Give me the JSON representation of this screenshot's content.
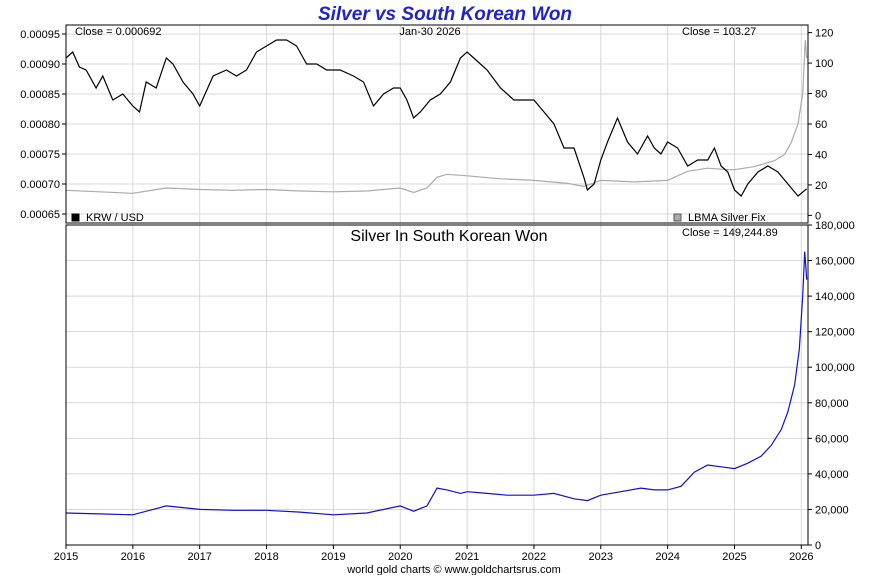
{
  "chart_data": [
    {
      "type": "line",
      "title": "Silver vs South Korean Won",
      "date_label": "Jan-30  2026",
      "left_close_label": "Close = 0.000692",
      "right_close_label": "Close = 103.27",
      "x_ticks": [
        "2015",
        "2016",
        "2017",
        "2018",
        "2019",
        "2020",
        "2021",
        "2022",
        "2023",
        "2024",
        "2025",
        "2026"
      ],
      "y_left_ticks": [
        "0.00095",
        "0.00090",
        "0.00085",
        "0.00080",
        "0.00075",
        "0.00070",
        "0.00065"
      ],
      "y_right_ticks": [
        "120",
        "100",
        "80",
        "60",
        "40",
        "20",
        "0"
      ],
      "ylim_left": [
        0.000635,
        0.000965
      ],
      "ylim_right": [
        -5,
        125
      ],
      "legend": [
        {
          "label": "KRW / USD",
          "color": "#000000",
          "placement": "bottom-left"
        },
        {
          "label": "LBMA Silver Fix",
          "color": "#aaaaaa",
          "placement": "bottom-right"
        }
      ],
      "series": [
        {
          "name": "KRW / USD",
          "axis": "left",
          "color": "#000000",
          "x": [
            2015.0,
            2015.1,
            2015.2,
            2015.3,
            2015.45,
            2015.55,
            2015.7,
            2015.85,
            2016.0,
            2016.1,
            2016.2,
            2016.35,
            2016.5,
            2016.6,
            2016.75,
            2016.9,
            2017.0,
            2017.2,
            2017.4,
            2017.55,
            2017.7,
            2017.85,
            2018.0,
            2018.15,
            2018.3,
            2018.45,
            2018.6,
            2018.75,
            2018.9,
            2019.1,
            2019.3,
            2019.45,
            2019.6,
            2019.75,
            2019.9,
            2020.0,
            2020.1,
            2020.2,
            2020.3,
            2020.45,
            2020.6,
            2020.75,
            2020.9,
            2021.0,
            2021.1,
            2021.3,
            2021.5,
            2021.7,
            2021.9,
            2022.0,
            2022.15,
            2022.3,
            2022.45,
            2022.6,
            2022.75,
            2022.8,
            2022.9,
            2023.0,
            2023.1,
            2023.25,
            2023.4,
            2023.55,
            2023.7,
            2023.8,
            2023.9,
            2024.0,
            2024.15,
            2024.3,
            2024.45,
            2024.6,
            2024.7,
            2024.8,
            2024.9,
            2025.0,
            2025.1,
            2025.2,
            2025.35,
            2025.5,
            2025.65,
            2025.8,
            2025.95,
            2026.08
          ],
          "y": [
            0.00091,
            0.00092,
            0.000895,
            0.00089,
            0.00086,
            0.00088,
            0.00084,
            0.00085,
            0.00083,
            0.00082,
            0.00087,
            0.00086,
            0.00091,
            0.0009,
            0.00087,
            0.00085,
            0.00083,
            0.00088,
            0.00089,
            0.00088,
            0.00089,
            0.00092,
            0.00093,
            0.00094,
            0.00094,
            0.00093,
            0.0009,
            0.0009,
            0.00089,
            0.00089,
            0.00088,
            0.00087,
            0.00083,
            0.00085,
            0.00086,
            0.00086,
            0.00084,
            0.00081,
            0.00082,
            0.00084,
            0.00085,
            0.00087,
            0.00091,
            0.00092,
            0.00091,
            0.00089,
            0.00086,
            0.00084,
            0.00084,
            0.00084,
            0.00082,
            0.0008,
            0.00076,
            0.00076,
            0.00071,
            0.00069,
            0.0007,
            0.00074,
            0.00077,
            0.00081,
            0.00077,
            0.00075,
            0.00078,
            0.00076,
            0.00075,
            0.00077,
            0.00076,
            0.00073,
            0.00074,
            0.00074,
            0.00076,
            0.00073,
            0.00072,
            0.00069,
            0.00068,
            0.0007,
            0.00072,
            0.00073,
            0.00072,
            0.0007,
            0.00068,
            0.000692
          ]
        },
        {
          "name": "LBMA Silver Fix",
          "axis": "right",
          "color": "#aaaaaa",
          "x": [
            2015.0,
            2015.5,
            2016.0,
            2016.5,
            2017.0,
            2017.5,
            2018.0,
            2018.5,
            2019.0,
            2019.5,
            2020.0,
            2020.2,
            2020.4,
            2020.55,
            2020.7,
            2021.0,
            2021.5,
            2022.0,
            2022.5,
            2022.75,
            2023.0,
            2023.5,
            2024.0,
            2024.3,
            2024.6,
            2024.9,
            2025.0,
            2025.3,
            2025.6,
            2025.75,
            2025.85,
            2025.95,
            2026.02,
            2026.06,
            2026.08
          ],
          "y": [
            16.5,
            15.5,
            14.5,
            18,
            17,
            16.5,
            17,
            16,
            15.5,
            16,
            18,
            15,
            18,
            25,
            27,
            26,
            24,
            23,
            21,
            19,
            23,
            22,
            23,
            29,
            31,
            30,
            30,
            32,
            36,
            40,
            48,
            60,
            80,
            115,
            103.27
          ]
        }
      ]
    },
    {
      "type": "line",
      "title": "Silver In South Korean Won",
      "close_label": "Close = 149,244.89",
      "source_label": "world gold charts © www.goldchartsrus.com",
      "x_ticks": [
        "2015",
        "2016",
        "2017",
        "2018",
        "2019",
        "2020",
        "2021",
        "2022",
        "2023",
        "2024",
        "2025",
        "2026"
      ],
      "y_ticks": [
        "180,000",
        "160,000",
        "140,000",
        "120,000",
        "100,000",
        "80,000",
        "60,000",
        "40,000",
        "20,000",
        "0"
      ],
      "ylim": [
        0,
        180000
      ],
      "series": [
        {
          "name": "Silver In South Korean Won",
          "color": "#1010cc",
          "x": [
            2015.0,
            2015.5,
            2016.0,
            2016.5,
            2017.0,
            2017.5,
            2018.0,
            2018.5,
            2019.0,
            2019.5,
            2020.0,
            2020.2,
            2020.4,
            2020.55,
            2020.7,
            2020.9,
            2021.0,
            2021.3,
            2021.6,
            2022.0,
            2022.3,
            2022.6,
            2022.8,
            2023.0,
            2023.3,
            2023.6,
            2023.8,
            2024.0,
            2024.2,
            2024.4,
            2024.6,
            2024.8,
            2025.0,
            2025.2,
            2025.4,
            2025.55,
            2025.7,
            2025.8,
            2025.9,
            2025.97,
            2026.02,
            2026.05,
            2026.07,
            2026.08
          ],
          "y": [
            18000,
            17500,
            17000,
            22000,
            20000,
            19500,
            19500,
            18500,
            17000,
            18000,
            22000,
            19000,
            22000,
            32000,
            31000,
            29000,
            30000,
            29000,
            28000,
            28000,
            29000,
            26000,
            25000,
            28000,
            30000,
            32000,
            31000,
            31000,
            33000,
            41000,
            45000,
            44000,
            43000,
            46000,
            50000,
            56000,
            65000,
            75000,
            90000,
            110000,
            140000,
            165000,
            155000,
            149244.89
          ]
        }
      ]
    }
  ]
}
